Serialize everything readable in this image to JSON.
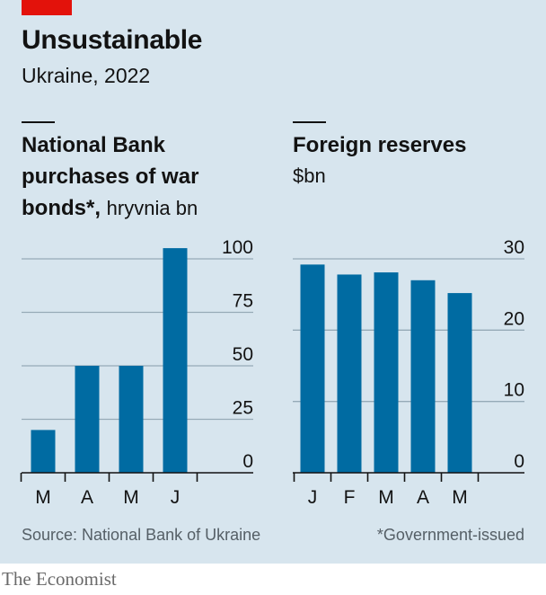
{
  "title": "Unsustainable",
  "subtitle": "Ukraine, 2022",
  "source": "Source: National Bank of Ukraine",
  "footnote": "*Government-issued",
  "brand": "The Economist",
  "colors": {
    "background": "#d7e5ee",
    "bar": "#006ba2",
    "grid": "#96aab7",
    "accent": "#e3120b"
  },
  "chart_data": [
    {
      "type": "bar",
      "title_bold_line1": "National Bank",
      "title_bold_line2": "purchases of war",
      "title_bold_line3": "bonds*,",
      "title_unit": "hryvnia bn",
      "categories": [
        "M",
        "A",
        "M",
        "J"
      ],
      "values": [
        20,
        50,
        50,
        105
      ],
      "ylim": [
        0,
        100
      ],
      "yticks": [
        "100",
        "75",
        "50",
        "25",
        "0"
      ],
      "ytick_values": [
        100,
        75,
        50,
        25,
        0
      ]
    },
    {
      "type": "bar",
      "title": "Foreign reserves",
      "unit": "$bn",
      "categories": [
        "J",
        "F",
        "M",
        "A",
        "M"
      ],
      "values": [
        29.2,
        27.8,
        28.1,
        27.0,
        25.2
      ],
      "ylim": [
        0,
        30
      ],
      "yticks": [
        "30",
        "20",
        "10",
        "0"
      ],
      "ytick_values": [
        30,
        20,
        10,
        0
      ]
    }
  ]
}
